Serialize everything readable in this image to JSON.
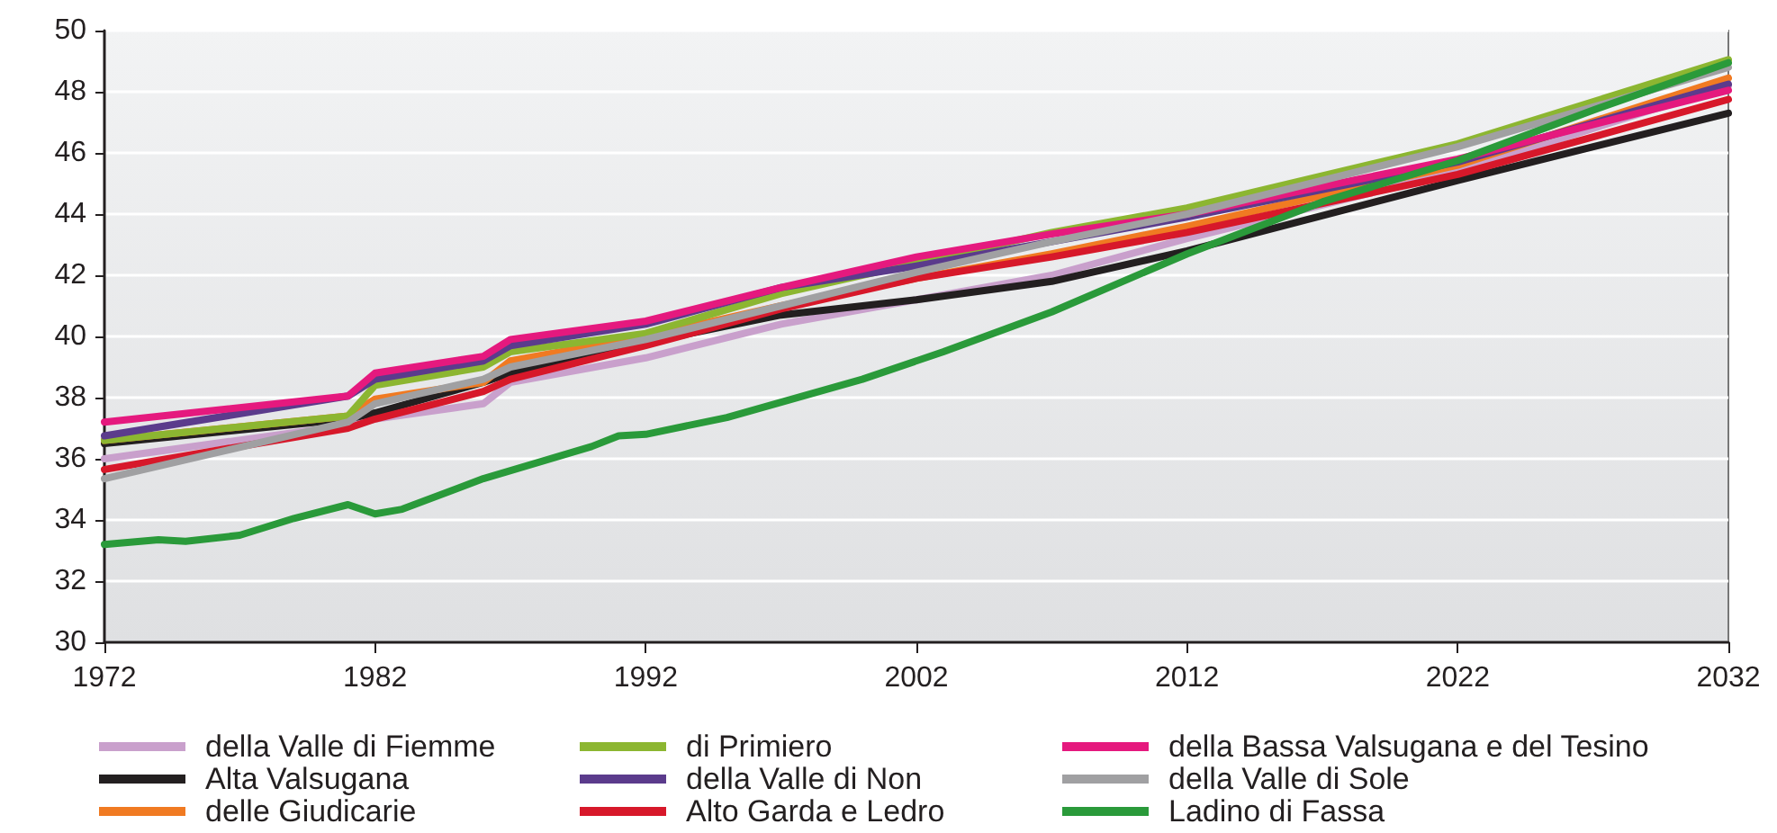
{
  "chart_data": {
    "type": "line",
    "x": [
      1972,
      1981,
      1982,
      1986,
      1987,
      1992,
      1997,
      2002,
      2007,
      2012,
      2022,
      2032
    ],
    "series": [
      {
        "name": "della Valle di Fiemme",
        "color": "#c9a0cc",
        "values": [
          36.0,
          37.1,
          37.3,
          37.8,
          38.5,
          39.3,
          40.4,
          41.2,
          42.0,
          43.2,
          45.4,
          48.2
        ]
      },
      {
        "name": "Alta Valsugana",
        "color": "#231f20",
        "values": [
          36.5,
          37.3,
          37.5,
          38.5,
          38.8,
          39.8,
          40.7,
          41.2,
          41.8,
          42.8,
          45.1,
          47.3
        ]
      },
      {
        "name": "delle Giudicarie",
        "color": "#f07a22",
        "values": [
          36.6,
          37.4,
          37.95,
          38.5,
          39.2,
          40.0,
          41.0,
          41.9,
          42.7,
          43.6,
          45.6,
          48.45
        ]
      },
      {
        "name": "di Primiero",
        "color": "#8cb631",
        "values": [
          36.6,
          37.4,
          38.4,
          39.0,
          39.5,
          40.1,
          41.4,
          42.4,
          43.4,
          44.2,
          46.3,
          49.05
        ]
      },
      {
        "name": "della Valle di Non",
        "color": "#5b3b8c",
        "values": [
          36.75,
          38.05,
          38.6,
          39.2,
          39.7,
          40.4,
          41.6,
          42.3,
          43.1,
          43.9,
          45.7,
          48.25
        ]
      },
      {
        "name": "Alto Garda e Ledro",
        "color": "#d7182a",
        "values": [
          35.65,
          37.0,
          37.3,
          38.2,
          38.6,
          39.7,
          40.9,
          41.9,
          42.6,
          43.4,
          45.3,
          47.75
        ]
      },
      {
        "name": "della Bassa Valsugana e del Tesino",
        "color": "#e5197e",
        "values": [
          37.2,
          38.05,
          38.8,
          39.35,
          39.9,
          40.5,
          41.6,
          42.6,
          43.35,
          44.0,
          45.8,
          48.05
        ]
      },
      {
        "name": "della Valle di Sole",
        "color": "#a0a0a2",
        "values": [
          35.35,
          37.2,
          37.8,
          38.6,
          39.0,
          39.9,
          41.0,
          42.1,
          43.1,
          44.0,
          46.2,
          48.8
        ]
      },
      {
        "name": "Ladino di Fassa",
        "color": "#2a9a3a",
        "x": [
          1972,
          1974,
          1975,
          1977,
          1979,
          1981,
          1982,
          1983,
          1986,
          1990,
          1991,
          1992,
          1995,
          1999,
          2000,
          2003,
          2007,
          2012,
          2017,
          2022,
          2027,
          2032
        ],
        "values": [
          33.2,
          33.35,
          33.3,
          33.5,
          34.05,
          34.5,
          34.2,
          34.35,
          35.35,
          36.4,
          36.75,
          36.8,
          37.35,
          38.35,
          38.6,
          39.5,
          40.8,
          42.7,
          44.4,
          45.75,
          47.4,
          48.95
        ]
      }
    ],
    "xlim": [
      1972,
      2032
    ],
    "xticks": [
      1972,
      1982,
      1992,
      2002,
      2012,
      2022,
      2032
    ],
    "ylim": [
      30,
      50
    ],
    "yticks": [
      30,
      32,
      34,
      36,
      38,
      40,
      42,
      44,
      46,
      48,
      50
    ],
    "grid": "y",
    "legend": "bottom",
    "marker": "none",
    "line_style": "solid"
  }
}
